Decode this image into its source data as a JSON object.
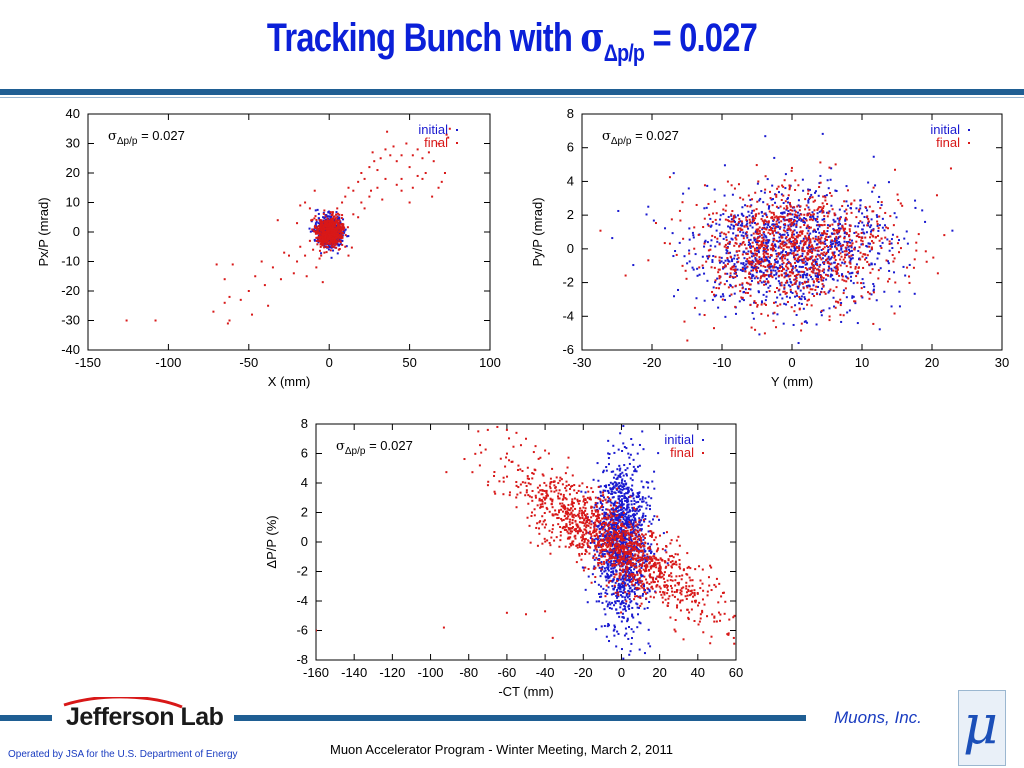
{
  "slide": {
    "title_main": "Tracking Bunch with ",
    "title_sigma": "σ",
    "title_sub": "Δp/p",
    "title_tail": " = 0.027",
    "footer": "Muon Accelerator Program - Winter Meeting, March 2, 2011",
    "operated_by": "Operated by JSA for the U.S. Department of Energy",
    "logo_text": "Jefferson Lab",
    "company": "Muons, Inc.",
    "mu_symbol": "μ",
    "colors": {
      "title": "#0b20d8",
      "bar": "#1f5e93",
      "initial": "#1a1ad0",
      "final": "#d81818"
    }
  },
  "chart_data": [
    {
      "type": "scatter",
      "id": "x-px",
      "xlabel": "X (mm)",
      "ylabel": "Px/P (mrad)",
      "xlim": [
        -150,
        100
      ],
      "ylim": [
        -40,
        40
      ],
      "xticks": [
        -150,
        -100,
        -50,
        0,
        50,
        100
      ],
      "yticks": [
        -40,
        -30,
        -20,
        -10,
        0,
        10,
        20,
        30,
        40
      ],
      "annotation": {
        "sigma": "σ",
        "sub": "Δp/p",
        "rest": " = 0.027"
      },
      "legend_position": "top-right",
      "series": [
        {
          "name": "initial",
          "color": "#1a1ad0",
          "core": {
            "cx": 0,
            "cy": 0,
            "sx": 4,
            "sy": 2.5,
            "n": 650
          },
          "points": []
        },
        {
          "name": "final",
          "color": "#d81818",
          "core": {
            "cx": 0,
            "cy": 0,
            "sx": 4,
            "sy": 2.5,
            "n": 650
          },
          "points": [
            [
              -126,
              -30
            ],
            [
              -108,
              -30
            ],
            [
              -65,
              -24
            ],
            [
              -62,
              -22
            ],
            [
              -72,
              -27
            ],
            [
              -60,
              -11
            ],
            [
              -55,
              -23
            ],
            [
              -50,
              -20
            ],
            [
              -48,
              -28
            ],
            [
              -63,
              -31
            ],
            [
              -40,
              -18
            ],
            [
              -35,
              -12
            ],
            [
              -30,
              -16
            ],
            [
              -25,
              -8
            ],
            [
              -20,
              -10
            ],
            [
              -18,
              -5
            ],
            [
              -15,
              -8
            ],
            [
              -12,
              -3
            ],
            [
              -10,
              -6
            ],
            [
              -8,
              -2
            ],
            [
              -6,
              -9
            ],
            [
              -22,
              -14
            ],
            [
              -28,
              -7
            ],
            [
              -42,
              -10
            ],
            [
              -46,
              -15
            ],
            [
              -38,
              -25
            ],
            [
              -14,
              -15
            ],
            [
              -8,
              -12
            ],
            [
              -4,
              -17
            ],
            [
              -3,
              -7
            ],
            [
              5,
              8
            ],
            [
              8,
              10
            ],
            [
              10,
              12
            ],
            [
              12,
              15
            ],
            [
              15,
              14
            ],
            [
              18,
              17
            ],
            [
              20,
              20
            ],
            [
              22,
              18
            ],
            [
              25,
              22
            ],
            [
              28,
              24
            ],
            [
              30,
              21
            ],
            [
              32,
              25
            ],
            [
              35,
              28
            ],
            [
              38,
              26
            ],
            [
              40,
              29
            ],
            [
              42,
              24
            ],
            [
              45,
              26
            ],
            [
              48,
              30
            ],
            [
              50,
              22
            ],
            [
              52,
              26
            ],
            [
              55,
              28
            ],
            [
              58,
              18
            ],
            [
              60,
              20
            ],
            [
              62,
              27
            ],
            [
              65,
              24
            ],
            [
              68,
              30
            ],
            [
              70,
              17
            ],
            [
              72,
              20
            ],
            [
              75,
              35
            ],
            [
              73,
              33
            ],
            [
              74,
              32
            ],
            [
              42,
              16
            ],
            [
              35,
              18
            ],
            [
              30,
              15
            ],
            [
              25,
              12
            ],
            [
              20,
              10
            ],
            [
              15,
              6
            ],
            [
              10,
              -5
            ],
            [
              12,
              -8
            ],
            [
              6,
              -6
            ],
            [
              18,
              5
            ],
            [
              22,
              8
            ],
            [
              26,
              14
            ],
            [
              33,
              11
            ],
            [
              45,
              18
            ],
            [
              52,
              15
            ],
            [
              58,
              25
            ],
            [
              64,
              12
            ],
            [
              68,
              15
            ],
            [
              -62,
              -30
            ],
            [
              -70,
              -11
            ],
            [
              -32,
              4
            ],
            [
              -20,
              3
            ],
            [
              -12,
              8
            ],
            [
              -15,
              10
            ],
            [
              -18,
              9
            ],
            [
              -9,
              14
            ],
            [
              -5,
              -8
            ],
            [
              -65,
              -16
            ],
            [
              45,
              14
            ],
            [
              50,
              10
            ],
            [
              27,
              27
            ],
            [
              36,
              34
            ],
            [
              55,
              19
            ]
          ]
        }
      ]
    },
    {
      "type": "scatter",
      "id": "y-py",
      "xlabel": "Y (mm)",
      "ylabel": "Py/P (mrad)",
      "xlim": [
        -30,
        30
      ],
      "ylim": [
        -6,
        8
      ],
      "xticks": [
        -30,
        -20,
        -10,
        0,
        10,
        20,
        30
      ],
      "yticks": [
        -6,
        -4,
        -2,
        0,
        2,
        4,
        6,
        8
      ],
      "annotation": {
        "sigma": "σ",
        "sub": "Δp/p",
        "rest": " = 0.027"
      },
      "legend_position": "top-right",
      "series": [
        {
          "name": "initial",
          "color": "#1a1ad0",
          "core": {
            "cx": 0,
            "cy": 0,
            "sx": 7,
            "sy": 1.8,
            "n": 1100
          },
          "points": []
        },
        {
          "name": "final",
          "color": "#d81818",
          "core": {
            "cx": 0,
            "cy": 0,
            "sx": 7,
            "sy": 1.8,
            "n": 1100
          },
          "points": []
        }
      ]
    },
    {
      "type": "scatter",
      "id": "ct-dp",
      "xlabel": "-CT (mm)",
      "ylabel": "ΔP/P (%)",
      "xlim": [
        -160,
        60
      ],
      "ylim": [
        -8,
        8
      ],
      "xticks": [
        -160,
        -140,
        -120,
        -100,
        -80,
        -60,
        -40,
        -20,
        0,
        20,
        40,
        60
      ],
      "yticks": [
        -8,
        -6,
        -4,
        -2,
        0,
        2,
        4,
        6,
        8
      ],
      "annotation": {
        "sigma": "σ",
        "sub": "Δp/p",
        "rest": " = 0.027"
      },
      "legend_position": "top-right",
      "series": [
        {
          "name": "initial",
          "color": "#1a1ad0",
          "core": {
            "cx": 0,
            "cy": 0,
            "sx": 7,
            "sy": 2.7,
            "n": 1300
          },
          "points": []
        },
        {
          "name": "final",
          "color": "#d81818",
          "core": {
            "cx": -5,
            "cy": 0,
            "sx": 14,
            "sy": 2.5,
            "slope": -0.1,
            "n": 1400
          },
          "points": [
            [
              -160,
              -6
            ],
            [
              -93,
              -5.8
            ],
            [
              -60,
              -4.8
            ],
            [
              -50,
              -4.9
            ],
            [
              -40,
              -4.7
            ],
            [
              -36,
              -6.5
            ],
            [
              -65,
              7.8
            ],
            [
              -70,
              7.6
            ],
            [
              -75,
              7.5
            ],
            [
              -60,
              7.6
            ],
            [
              -55,
              7.4
            ],
            [
              -50,
              7.0
            ],
            [
              -45,
              6.5
            ],
            [
              -40,
              6.2
            ],
            [
              -38,
              6.0
            ]
          ]
        }
      ]
    }
  ]
}
